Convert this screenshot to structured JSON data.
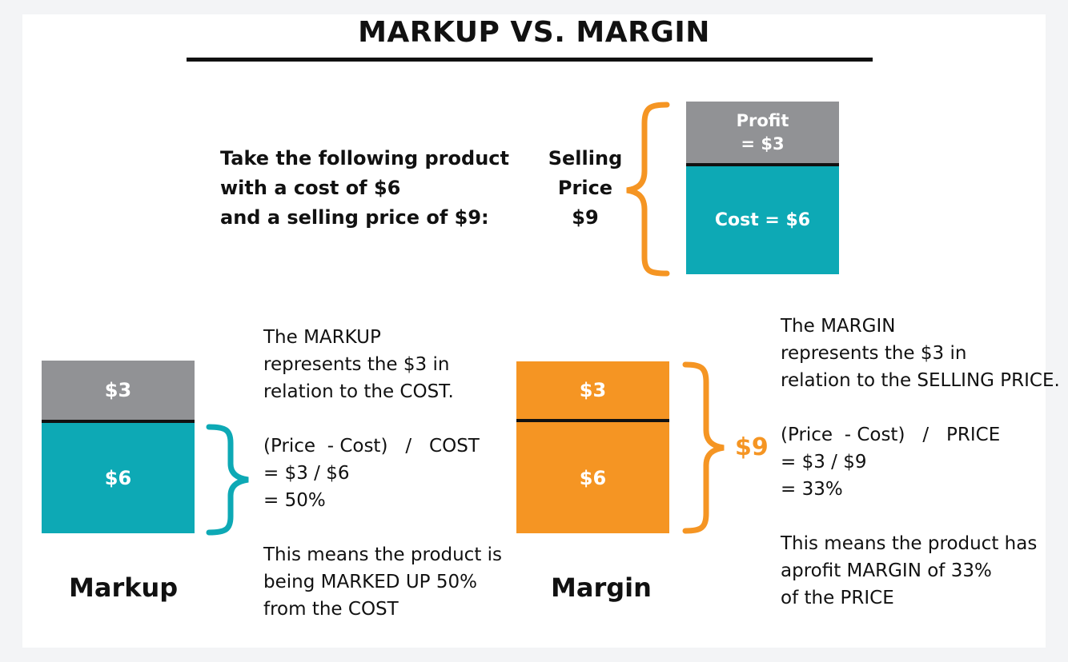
{
  "title": "MARKUP VS. MARGIN",
  "intro": {
    "lines": [
      "Take the following product",
      "with a cost of $6",
      "and a selling price of $9:"
    ]
  },
  "top_diagram": {
    "bracket_label": [
      "Selling",
      "Price",
      "$9"
    ],
    "profit_label": [
      "Profit",
      "= $3"
    ],
    "cost_label": "Cost = $6"
  },
  "markup": {
    "top_value": "$3",
    "bottom_value": "$6",
    "caption": "Markup",
    "desc_lines": [
      "The MARKUP",
      "represents the $3 in",
      "relation to the COST.",
      "",
      "(Price  - Cost)   /   COST",
      "= $3 / $6",
      "= 50%",
      "",
      "This means the product is",
      "being MARKED UP 50%",
      "from the COST"
    ]
  },
  "margin": {
    "top_value": "$3",
    "bottom_value": "$6",
    "bracket_value": "$9",
    "caption": "Margin",
    "desc_lines": [
      "The MARGIN",
      "represents the $3 in",
      "relation to the SELLING PRICE.",
      "",
      "(Price  - Cost)   /   PRICE",
      "= $3 / $9",
      "= 33%",
      "",
      "This means the product has",
      "aprofit MARGIN of 33%",
      "of the PRICE"
    ]
  },
  "colors": {
    "gray": "#919295",
    "teal": "#0da9b5",
    "orange": "#f59523",
    "black": "#111111"
  }
}
